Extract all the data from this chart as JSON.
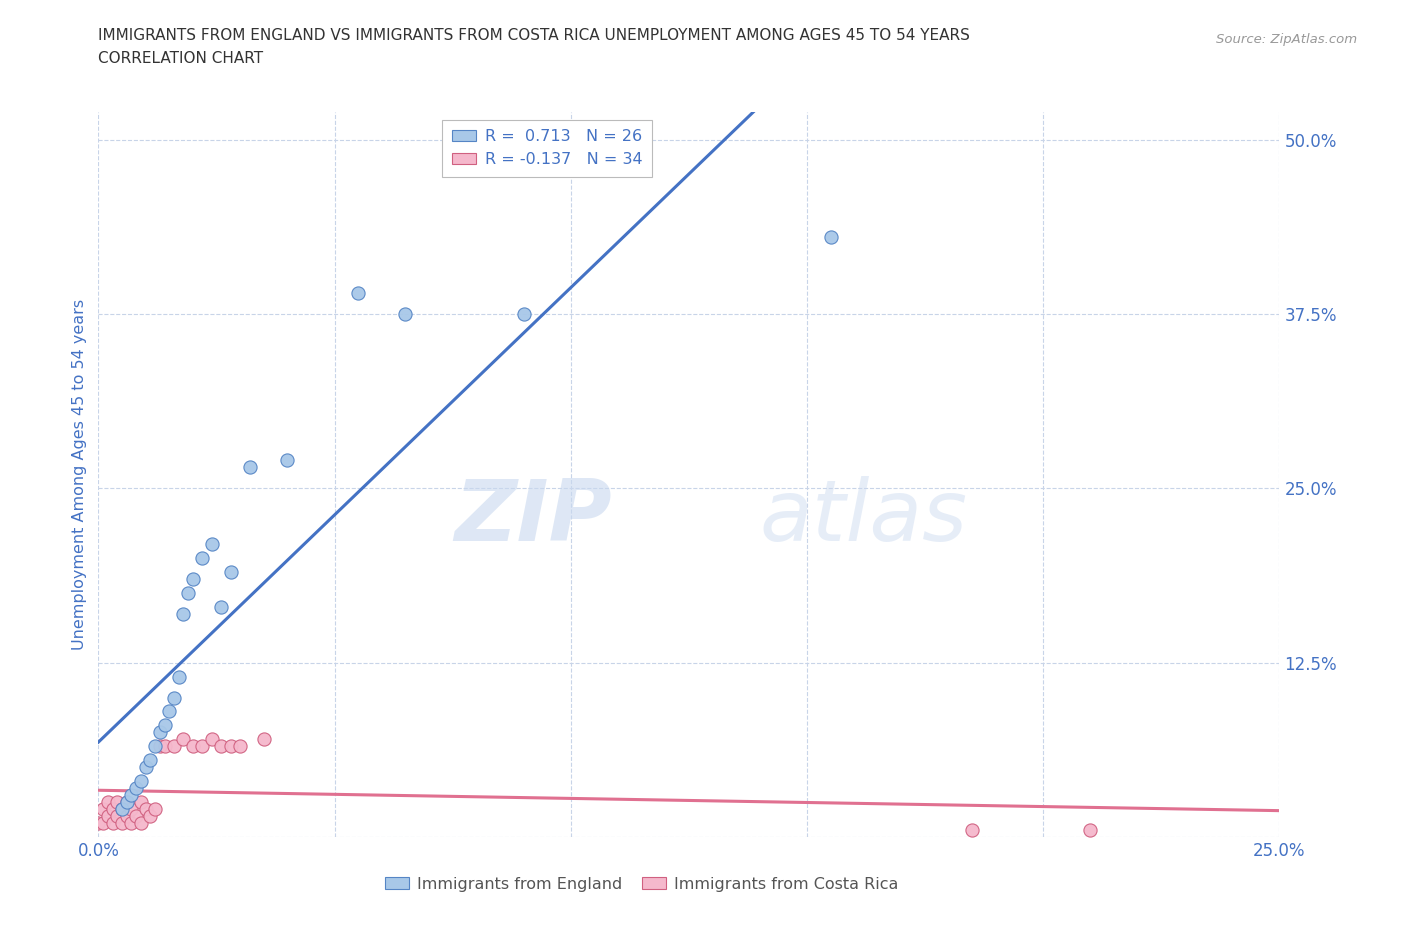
{
  "title_line1": "IMMIGRANTS FROM ENGLAND VS IMMIGRANTS FROM COSTA RICA UNEMPLOYMENT AMONG AGES 45 TO 54 YEARS",
  "title_line2": "CORRELATION CHART",
  "source_text": "Source: ZipAtlas.com",
  "ylabel": "Unemployment Among Ages 45 to 54 years",
  "watermark_zip": "ZIP",
  "watermark_atlas": "atlas",
  "xlim": [
    0.0,
    0.25
  ],
  "ylim": [
    0.0,
    0.52
  ],
  "xticks": [
    0.0,
    0.05,
    0.1,
    0.15,
    0.2,
    0.25
  ],
  "xtick_labels": [
    "0.0%",
    "",
    "",
    "",
    "",
    "25.0%"
  ],
  "ytick_positions": [
    0.0,
    0.125,
    0.25,
    0.375,
    0.5
  ],
  "ytick_labels": [
    "",
    "12.5%",
    "25.0%",
    "37.5%",
    "50.0%"
  ],
  "england_color": "#a8c8e8",
  "england_edge_color": "#5585c5",
  "england_line_color": "#4472c4",
  "costa_rica_color": "#f5b8cc",
  "costa_rica_edge_color": "#d06080",
  "costa_rica_line_color": "#e07090",
  "R_england": 0.713,
  "N_england": 26,
  "R_costa_rica": -0.137,
  "N_costa_rica": 34,
  "england_x": [
    0.005,
    0.006,
    0.007,
    0.008,
    0.009,
    0.01,
    0.011,
    0.012,
    0.013,
    0.014,
    0.015,
    0.016,
    0.017,
    0.018,
    0.019,
    0.02,
    0.022,
    0.024,
    0.026,
    0.028,
    0.032,
    0.04,
    0.055,
    0.065,
    0.09,
    0.155
  ],
  "england_y": [
    0.02,
    0.025,
    0.03,
    0.035,
    0.04,
    0.05,
    0.055,
    0.065,
    0.075,
    0.08,
    0.09,
    0.1,
    0.115,
    0.16,
    0.175,
    0.185,
    0.2,
    0.21,
    0.165,
    0.19,
    0.265,
    0.27,
    0.39,
    0.375,
    0.375,
    0.43
  ],
  "costa_rica_x": [
    0.0,
    0.001,
    0.001,
    0.002,
    0.002,
    0.003,
    0.003,
    0.004,
    0.004,
    0.005,
    0.005,
    0.006,
    0.006,
    0.007,
    0.007,
    0.008,
    0.009,
    0.009,
    0.01,
    0.011,
    0.012,
    0.013,
    0.014,
    0.016,
    0.018,
    0.02,
    0.022,
    0.024,
    0.026,
    0.028,
    0.03,
    0.035,
    0.185,
    0.21
  ],
  "costa_rica_y": [
    0.01,
    0.01,
    0.02,
    0.015,
    0.025,
    0.01,
    0.02,
    0.015,
    0.025,
    0.01,
    0.02,
    0.015,
    0.025,
    0.01,
    0.02,
    0.015,
    0.01,
    0.025,
    0.02,
    0.015,
    0.02,
    0.065,
    0.065,
    0.065,
    0.07,
    0.065,
    0.065,
    0.07,
    0.065,
    0.065,
    0.065,
    0.07,
    0.005,
    0.005
  ],
  "background_color": "#ffffff",
  "grid_color": "#c8d4e8",
  "title_color": "#333333",
  "tick_label_color": "#4472c4",
  "legend_label_color": "#333333"
}
